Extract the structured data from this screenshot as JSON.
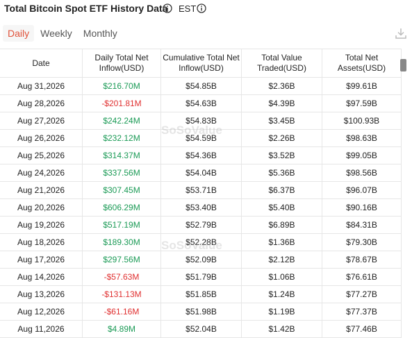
{
  "header": {
    "title": "Total Bitcoin Spot ETF History Data",
    "timezone": "EST"
  },
  "tabs": [
    "Daily",
    "Weekly",
    "Monthly"
  ],
  "watermark": "SoSoValue",
  "table": {
    "columns": [
      "Date",
      "Daily Total Net Inflow(USD)",
      "Cumulative Total Net Inflow(USD)",
      "Total Value Traded(USD)",
      "Total Net Assets(USD)"
    ],
    "rows": [
      [
        "Aug 31,2026",
        "$216.70M",
        "$54.85B",
        "$2.36B",
        "$99.61B"
      ],
      [
        "Aug 28,2026",
        "-$201.81M",
        "$54.63B",
        "$4.39B",
        "$97.59B"
      ],
      [
        "Aug 27,2026",
        "$242.24M",
        "$54.83B",
        "$3.45B",
        "$100.93B"
      ],
      [
        "Aug 26,2026",
        "$232.12M",
        "$54.59B",
        "$2.26B",
        "$98.63B"
      ],
      [
        "Aug 25,2026",
        "$314.37M",
        "$54.36B",
        "$3.52B",
        "$99.05B"
      ],
      [
        "Aug 24,2026",
        "$337.56M",
        "$54.04B",
        "$5.36B",
        "$98.56B"
      ],
      [
        "Aug 21,2026",
        "$307.45M",
        "$53.71B",
        "$6.37B",
        "$96.07B"
      ],
      [
        "Aug 20,2026",
        "$606.29M",
        "$53.40B",
        "$5.40B",
        "$90.16B"
      ],
      [
        "Aug 19,2026",
        "$517.19M",
        "$52.79B",
        "$6.89B",
        "$84.31B"
      ],
      [
        "Aug 18,2026",
        "$189.30M",
        "$52.28B",
        "$1.36B",
        "$79.30B"
      ],
      [
        "Aug 17,2026",
        "$297.56M",
        "$52.09B",
        "$2.12B",
        "$78.67B"
      ],
      [
        "Aug 14,2026",
        "-$57.63M",
        "$51.79B",
        "$1.06B",
        "$76.61B"
      ],
      [
        "Aug 13,2026",
        "-$131.13M",
        "$51.85B",
        "$1.24B",
        "$77.27B"
      ],
      [
        "Aug 12,2026",
        "-$61.16M",
        "$51.98B",
        "$1.19B",
        "$77.37B"
      ],
      [
        "Aug 11,2026",
        "$4.89M",
        "$52.04B",
        "$1.42B",
        "$77.46B"
      ]
    ]
  }
}
